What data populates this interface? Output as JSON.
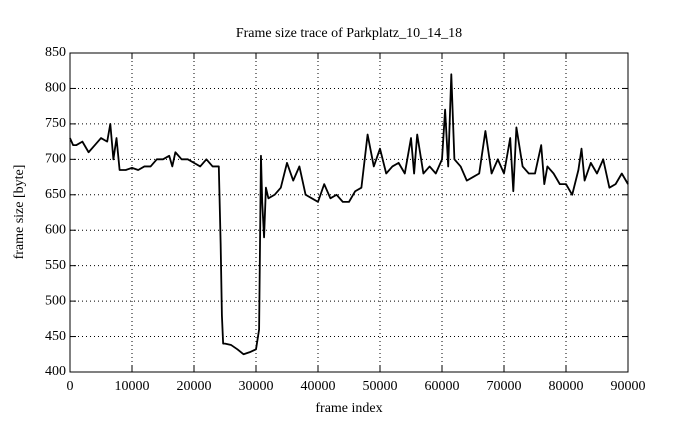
{
  "chart_data": {
    "type": "line",
    "title": "Frame size trace of Parkplatz_10_14_18",
    "x_label": "frame index",
    "y_label": "frame size [byte]",
    "x": [
      0,
      500,
      1000,
      2000,
      3000,
      4000,
      5000,
      6000,
      6500,
      7000,
      7500,
      8000,
      9000,
      10000,
      11000,
      12000,
      13000,
      14000,
      15000,
      16000,
      16500,
      17000,
      18000,
      19000,
      20000,
      21000,
      22000,
      23000,
      24000,
      24300,
      24500,
      24700,
      25000,
      26000,
      27000,
      28000,
      29000,
      30000,
      30500,
      30800,
      31000,
      31300,
      31600,
      32000,
      33000,
      34000,
      35000,
      36000,
      37000,
      38000,
      39000,
      40000,
      41000,
      42000,
      43000,
      44000,
      45000,
      46000,
      47000,
      48000,
      49000,
      50000,
      51000,
      52000,
      53000,
      54000,
      55000,
      55500,
      56000,
      57000,
      58000,
      59000,
      60000,
      60500,
      61000,
      61500,
      62000,
      63000,
      64000,
      65000,
      66000,
      67000,
      68000,
      69000,
      70000,
      71000,
      71500,
      72000,
      73000,
      74000,
      75000,
      76000,
      76500,
      77000,
      78000,
      79000,
      80000,
      81000,
      82000,
      82500,
      83000,
      84000,
      85000,
      86000,
      87000,
      88000,
      89000,
      90000
    ],
    "values": [
      730,
      720,
      720,
      725,
      710,
      720,
      730,
      725,
      750,
      700,
      730,
      685,
      685,
      688,
      685,
      690,
      690,
      700,
      700,
      705,
      690,
      710,
      700,
      700,
      695,
      690,
      700,
      690,
      690,
      580,
      480,
      440,
      440,
      438,
      432,
      425,
      428,
      432,
      460,
      705,
      640,
      590,
      660,
      645,
      650,
      660,
      695,
      670,
      690,
      650,
      645,
      640,
      665,
      645,
      650,
      640,
      640,
      655,
      660,
      735,
      690,
      715,
      680,
      690,
      695,
      680,
      730,
      680,
      735,
      680,
      690,
      680,
      700,
      770,
      690,
      820,
      700,
      690,
      670,
      675,
      680,
      740,
      680,
      700,
      680,
      730,
      655,
      745,
      690,
      680,
      680,
      720,
      665,
      690,
      680,
      665,
      665,
      650,
      685,
      715,
      670,
      695,
      680,
      700,
      660,
      665,
      680,
      665
    ],
    "color": "#000000",
    "xlim": [
      0,
      90000
    ],
    "ylim": [
      400,
      850
    ],
    "xticks": [
      0,
      10000,
      20000,
      30000,
      40000,
      50000,
      60000,
      70000,
      80000,
      90000
    ],
    "yticks": [
      400,
      450,
      500,
      550,
      600,
      650,
      700,
      750,
      800,
      850
    ],
    "grid": true
  }
}
